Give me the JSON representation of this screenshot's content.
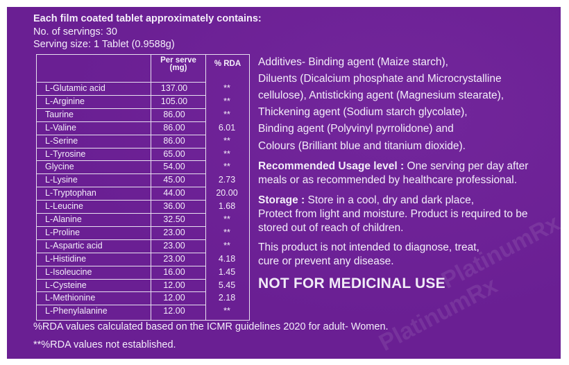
{
  "header": {
    "title": "Each film coated tablet approximately contains:",
    "servings": "No. of servings: 30",
    "serving_size": "Serving size: 1 Tablet (0.9588g)"
  },
  "table": {
    "col_serve_line1": "Per serve",
    "col_serve_line2": "(mg)",
    "col_rda": "% RDA",
    "rows": [
      {
        "name": "L-Glutamic  acid",
        "per_serve": "137.00",
        "rda": "**"
      },
      {
        "name": "L-Arginine",
        "per_serve": "105.00",
        "rda": "**"
      },
      {
        "name": "Taurine",
        "per_serve": "86.00",
        "rda": "**"
      },
      {
        "name": "L-Valine",
        "per_serve": "86.00",
        "rda": "6.01"
      },
      {
        "name": "L-Serine",
        "per_serve": "86.00",
        "rda": "**"
      },
      {
        "name": "L-Tyrosine",
        "per_serve": "65.00",
        "rda": "**"
      },
      {
        "name": "Glycine",
        "per_serve": "54.00",
        "rda": "**"
      },
      {
        "name": "L-Lysine",
        "per_serve": "45.00",
        "rda": "2.73"
      },
      {
        "name": "L-Tryptophan",
        "per_serve": "44.00",
        "rda": "20.00"
      },
      {
        "name": "L-Leucine",
        "per_serve": "36.00",
        "rda": "1.68"
      },
      {
        "name": "L-Alanine",
        "per_serve": "32.50",
        "rda": "**"
      },
      {
        "name": "L-Proline",
        "per_serve": "23.00",
        "rda": "**"
      },
      {
        "name": "L-Aspartic acid",
        "per_serve": "23.00",
        "rda": "**"
      },
      {
        "name": "L-Histidine",
        "per_serve": "23.00",
        "rda": "4.18"
      },
      {
        "name": "L-Isoleucine",
        "per_serve": "16.00",
        "rda": "1.45"
      },
      {
        "name": "L-Cysteine",
        "per_serve": "12.00",
        "rda": "5.45"
      },
      {
        "name": "L-Methionine",
        "per_serve": "12.00",
        "rda": "2.18"
      },
      {
        "name": "L-Phenylalanine",
        "per_serve": "12.00",
        "rda": "**"
      }
    ]
  },
  "info": {
    "additives_lines": [
      "Additives-    Binding agent (Maize starch),",
      "Diluents (Dicalcium phosphate and  Microcrystalline",
      "cellulose), Antisticking agent (Magnesium stearate),",
      "Thickening agent (Sodium starch glycolate),",
      "Binding agent (Polyvinyl pyrrolidone) and",
      "Colours (Brilliant blue and titanium dioxide)."
    ],
    "usage_label": "Recommended Usage level :",
    "usage_text_1": " One serving per day after",
    "usage_text_2": "meals or as recommended by healthcare professional.",
    "storage_label": "Storage :",
    "storage_text_1": " Store in a cool, dry and dark place,",
    "storage_text_2": "Protect from light and moisture. Product is required to be",
    "storage_text_3": "stored out of reach of children.",
    "disclaimer_1": "This product is not intended to diagnose, treat,",
    "disclaimer_2": "cure or prevent any disease.",
    "not_medicinal": "NOT FOR MEDICINAL USE"
  },
  "footer": {
    "rda_note": "%RDA values calculated based on the ICMR guidelines 2020 for adult-  Women.",
    "rda_not_established": "**%RDA values not established."
  },
  "watermark": {
    "text": "PlatinumRx"
  },
  "colors": {
    "background": "#6a1f93",
    "text": "#f4eefa"
  }
}
